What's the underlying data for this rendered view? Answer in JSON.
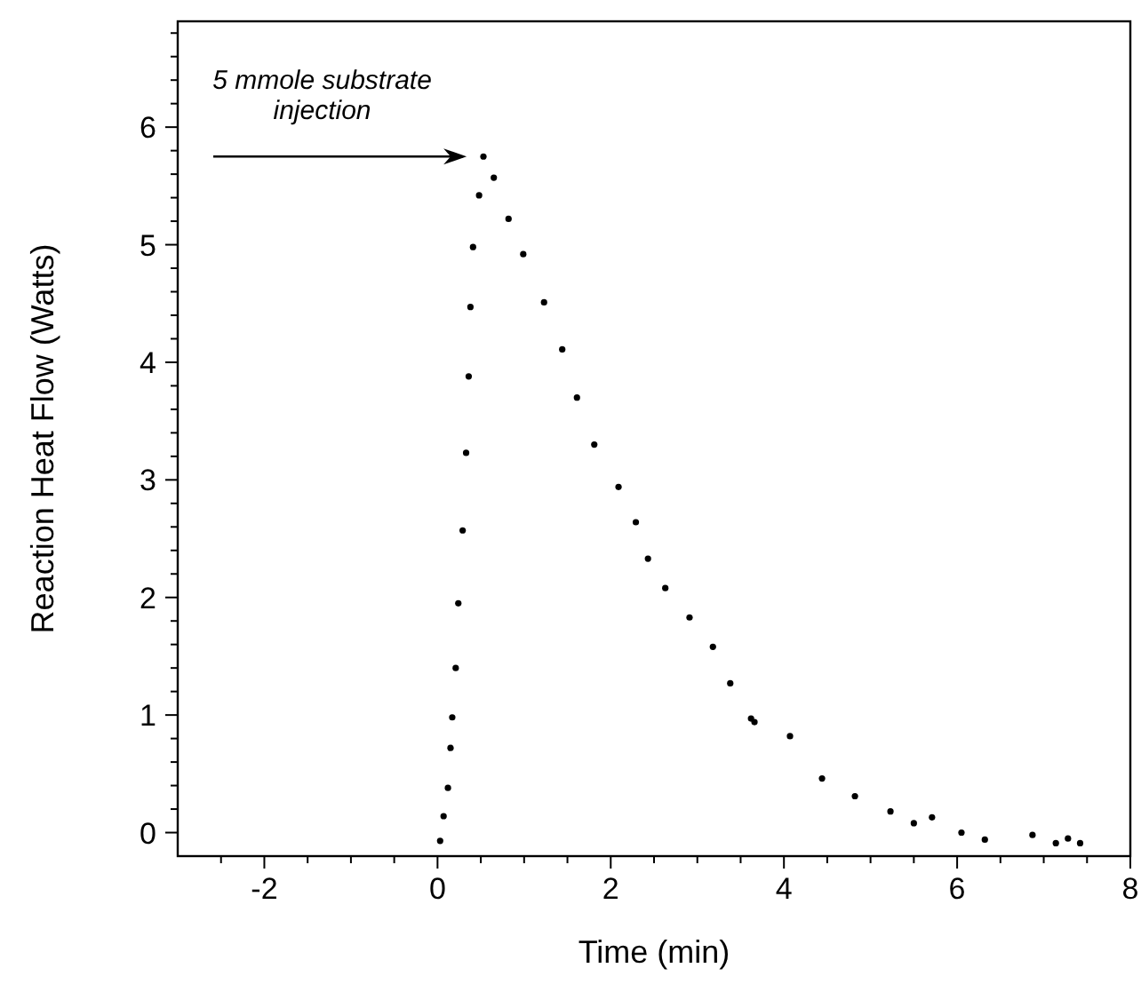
{
  "chart_data": {
    "type": "scatter",
    "xlabel": "Time (min)",
    "ylabel": "Reaction Heat Flow (Watts)",
    "xlim": [
      -3,
      8
    ],
    "ylim": [
      -0.2,
      6.9
    ],
    "xticks": [
      {
        "value": -2.5,
        "label": null
      },
      -2,
      {
        "value": -1.5,
        "label": null
      },
      {
        "value": -1,
        "label": null
      },
      {
        "value": -0.5,
        "label": null
      },
      0,
      {
        "value": 0.5,
        "label": null
      },
      {
        "value": 1,
        "label": null
      },
      {
        "value": 1.5,
        "label": null
      },
      2,
      {
        "value": 2.5,
        "label": null
      },
      {
        "value": 3,
        "label": null
      },
      {
        "value": 3.5,
        "label": null
      },
      4,
      {
        "value": 4.5,
        "label": null
      },
      {
        "value": 5,
        "label": null
      },
      {
        "value": 5.5,
        "label": null
      },
      6,
      {
        "value": 6.5,
        "label": null
      },
      {
        "value": 7,
        "label": null
      },
      {
        "value": 7.5,
        "label": null
      },
      8
    ],
    "yticks": [
      0,
      {
        "value": 0.2,
        "label": null
      },
      {
        "value": 0.4,
        "label": null
      },
      {
        "value": 0.6,
        "label": null
      },
      {
        "value": 0.8,
        "label": null
      },
      1,
      {
        "value": 1.2,
        "label": null
      },
      {
        "value": 1.4,
        "label": null
      },
      {
        "value": 1.6,
        "label": null
      },
      {
        "value": 1.8,
        "label": null
      },
      2,
      {
        "value": 2.2,
        "label": null
      },
      {
        "value": 2.4,
        "label": null
      },
      {
        "value": 2.6,
        "label": null
      },
      {
        "value": 2.8,
        "label": null
      },
      3,
      {
        "value": 3.2,
        "label": null
      },
      {
        "value": 3.4,
        "label": null
      },
      {
        "value": 3.6,
        "label": null
      },
      {
        "value": 3.8,
        "label": null
      },
      4,
      {
        "value": 4.2,
        "label": null
      },
      {
        "value": 4.4,
        "label": null
      },
      {
        "value": 4.6,
        "label": null
      },
      {
        "value": 4.8,
        "label": null
      },
      5,
      {
        "value": 5.2,
        "label": null
      },
      {
        "value": 5.4,
        "label": null
      },
      {
        "value": 5.6,
        "label": null
      },
      {
        "value": 5.8,
        "label": null
      },
      6,
      {
        "value": 6.2,
        "label": null
      },
      {
        "value": 6.4,
        "label": null
      },
      {
        "value": 6.6,
        "label": null
      },
      {
        "value": 6.8,
        "label": null
      }
    ],
    "marker": "circle",
    "grid": false,
    "series": [
      {
        "color": "#000000",
        "x": [
          0.03,
          0.07,
          0.12,
          0.15,
          0.17,
          0.21,
          0.24,
          0.29,
          0.33,
          0.36,
          0.38,
          0.41,
          0.48,
          0.53,
          0.65,
          0.82,
          0.99,
          1.23,
          1.44,
          1.61,
          1.81,
          2.09,
          2.29,
          2.43,
          2.63,
          2.91,
          3.18,
          3.38,
          3.62,
          3.66,
          4.07,
          4.44,
          4.82,
          5.23,
          5.5,
          5.71,
          6.05,
          6.32,
          6.87,
          7.14,
          7.28,
          7.42
        ],
        "values": [
          -0.07,
          0.14,
          0.38,
          0.72,
          0.98,
          1.4,
          1.95,
          2.57,
          3.23,
          3.88,
          4.47,
          4.98,
          5.42,
          5.75,
          5.57,
          5.22,
          4.92,
          4.51,
          4.11,
          3.7,
          3.3,
          2.94,
          2.64,
          2.33,
          2.08,
          1.83,
          1.58,
          1.27,
          0.97,
          0.94,
          0.82,
          0.46,
          0.31,
          0.18,
          0.08,
          0.13,
          0.0,
          -0.06,
          -0.02,
          -0.09,
          -0.05,
          -0.09
        ]
      }
    ],
    "annotations": [
      {
        "text": "5 mmole substrate injection",
        "x": 0.5,
        "y": 5.75
      }
    ]
  }
}
